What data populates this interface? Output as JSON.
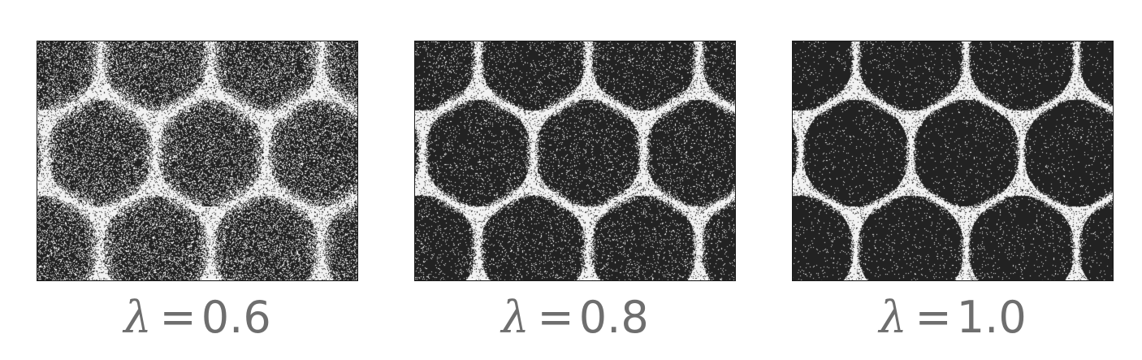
{
  "panels": [
    {
      "symbol": "λ",
      "equals": "=",
      "value": "0.6",
      "lambda": 0.6
    },
    {
      "symbol": "λ",
      "equals": "=",
      "value": "0.8",
      "lambda": 0.8
    },
    {
      "symbol": "λ",
      "equals": "=",
      "value": "1.0",
      "lambda": 1.0
    }
  ],
  "colors": {
    "dark": "#222222",
    "light": "#f2f2f2",
    "caption": "#6e6e6e"
  }
}
